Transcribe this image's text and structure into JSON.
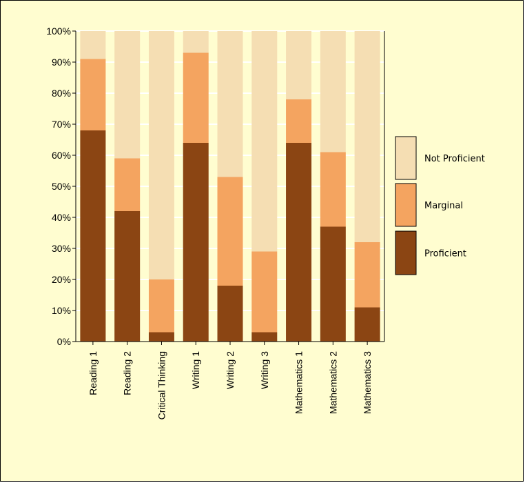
{
  "chart_data": {
    "type": "bar",
    "stacked": true,
    "normalized": true,
    "categories": [
      "Reading 1",
      "Reading 2",
      "Critical Thinking",
      "Writing 1",
      "Writing 2",
      "Writing 3",
      "Mathematics 1",
      "Mathematics 2",
      "Mathematics 3"
    ],
    "series": [
      {
        "name": "Proficient",
        "color": "#8b4513",
        "values": [
          68,
          42,
          3,
          64,
          18,
          3,
          64,
          37,
          11
        ]
      },
      {
        "name": "Marginal",
        "color": "#f4a460",
        "values": [
          23,
          17,
          17,
          29,
          35,
          26,
          14,
          24,
          21
        ]
      },
      {
        "name": "Not Proficient",
        "color": "#f5deb3",
        "values": [
          9,
          41,
          80,
          7,
          47,
          71,
          22,
          39,
          68
        ]
      }
    ],
    "ylim": [
      0,
      100
    ],
    "yticks": [
      "0%",
      "10%",
      "20%",
      "30%",
      "40%",
      "50%",
      "60%",
      "70%",
      "80%",
      "90%",
      "100%"
    ],
    "grid": true,
    "legend_placement": "right",
    "legend_order": [
      "Not Proficient",
      "Marginal",
      "Proficient"
    ],
    "colors": {
      "background": "#fffdd0",
      "grid": "#ffffff"
    }
  }
}
